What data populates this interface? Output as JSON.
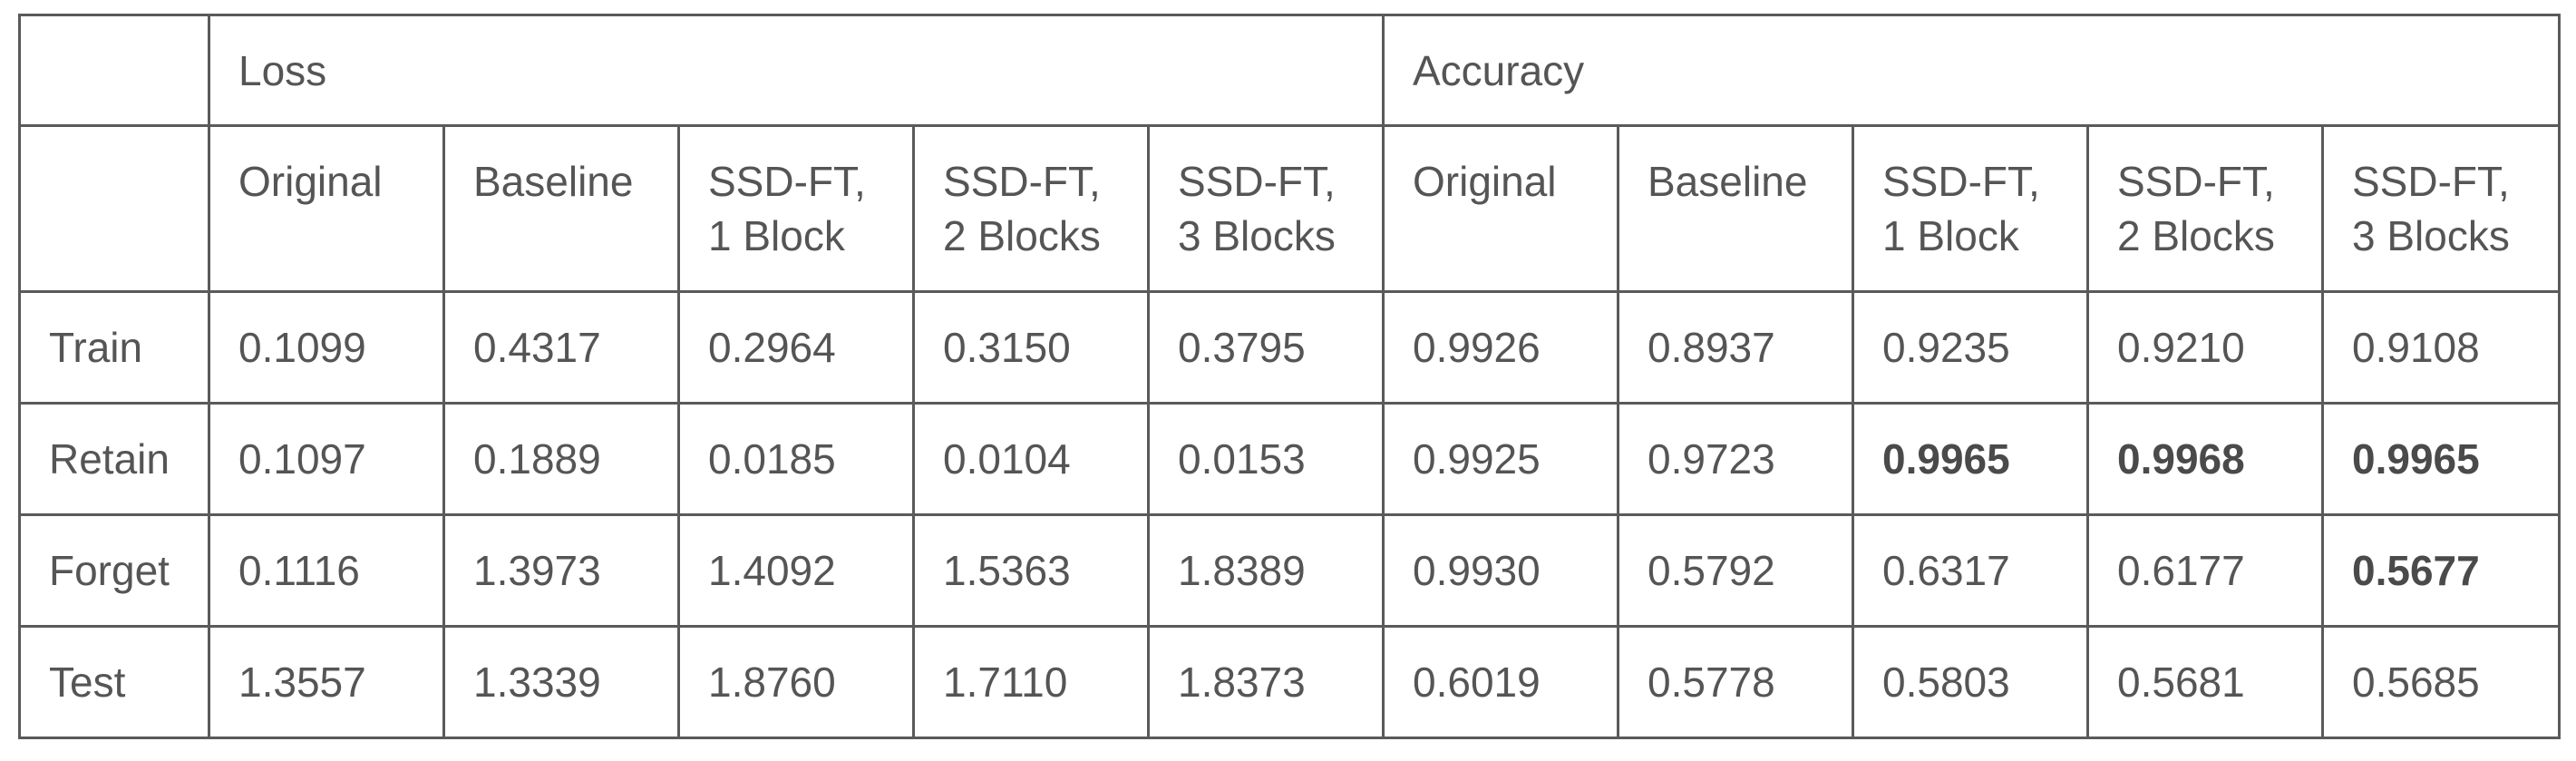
{
  "table": {
    "groups": [
      "Loss",
      "Accuracy"
    ],
    "columns": [
      "Original",
      "Baseline",
      "SSD-FT,\n1 Block",
      "SSD-FT,\n2 Blocks",
      "SSD-FT,\n3 Blocks"
    ],
    "rows": [
      {
        "label": "Train",
        "loss": [
          "0.1099",
          "0.4317",
          "0.2964",
          "0.3150",
          "0.3795"
        ],
        "accuracy": [
          "0.9926",
          "0.8937",
          "0.9235",
          "0.9210",
          "0.9108"
        ],
        "accuracy_bold": [
          false,
          false,
          false,
          false,
          false
        ]
      },
      {
        "label": "Retain",
        "loss": [
          "0.1097",
          "0.1889",
          "0.0185",
          "0.0104",
          "0.0153"
        ],
        "accuracy": [
          "0.9925",
          "0.9723",
          "0.9965",
          "0.9968",
          "0.9965"
        ],
        "accuracy_bold": [
          false,
          false,
          true,
          true,
          true
        ]
      },
      {
        "label": "Forget",
        "loss": [
          "0.1116",
          "1.3973",
          "1.4092",
          "1.5363",
          "1.8389"
        ],
        "accuracy": [
          "0.9930",
          "0.5792",
          "0.6317",
          "0.6177",
          "0.5677"
        ],
        "accuracy_bold": [
          false,
          false,
          false,
          false,
          true
        ]
      },
      {
        "label": "Test",
        "loss": [
          "1.3557",
          "1.3339",
          "1.8760",
          "1.7110",
          "1.8373"
        ],
        "accuracy": [
          "0.6019",
          "0.5778",
          "0.5803",
          "0.5681",
          "0.5685"
        ],
        "accuracy_bold": [
          false,
          false,
          false,
          false,
          false
        ]
      }
    ]
  }
}
